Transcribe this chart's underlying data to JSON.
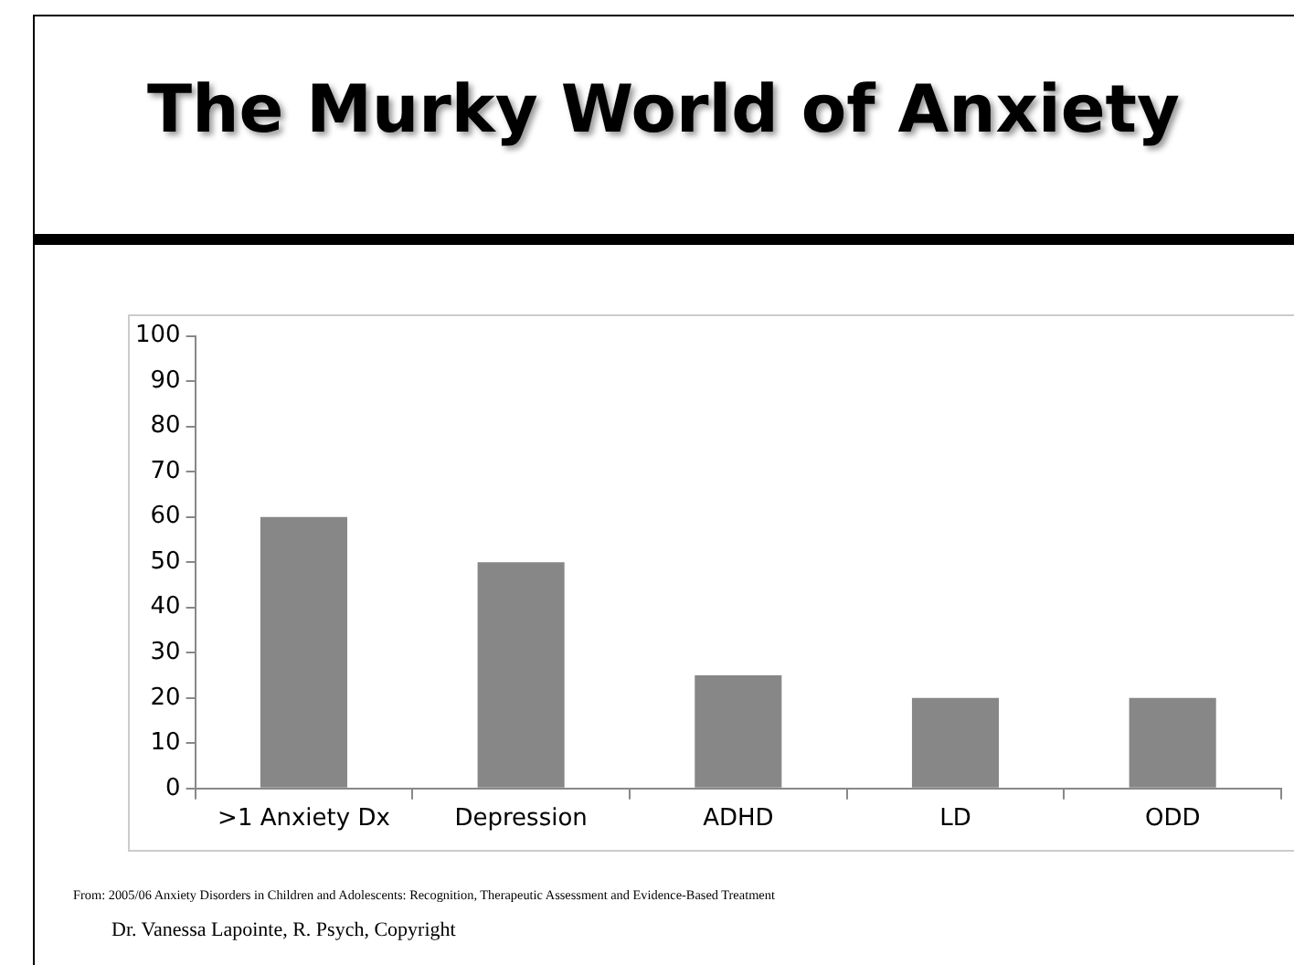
{
  "chart_data": {
    "type": "bar",
    "title": "The Murky World of Anxiety",
    "categories": [
      ">1 Anxiety Dx",
      "Depression",
      "ADHD",
      "LD",
      "ODD"
    ],
    "values": [
      60,
      50,
      25,
      20,
      20
    ],
    "color": "#878787",
    "ylim": [
      0,
      100
    ],
    "yticks": [
      0,
      10,
      20,
      30,
      40,
      50,
      60,
      70,
      80,
      90,
      100
    ],
    "grid": false,
    "legend": false,
    "annotations": [
      "From: 2005/06 Anxiety Disorders in Children and Adolescents: Recognition, Therapeutic Assessment and Evidence-Based Treatment",
      "Dr. Vanessa Lapointe, R. Psych, Copyright"
    ]
  }
}
